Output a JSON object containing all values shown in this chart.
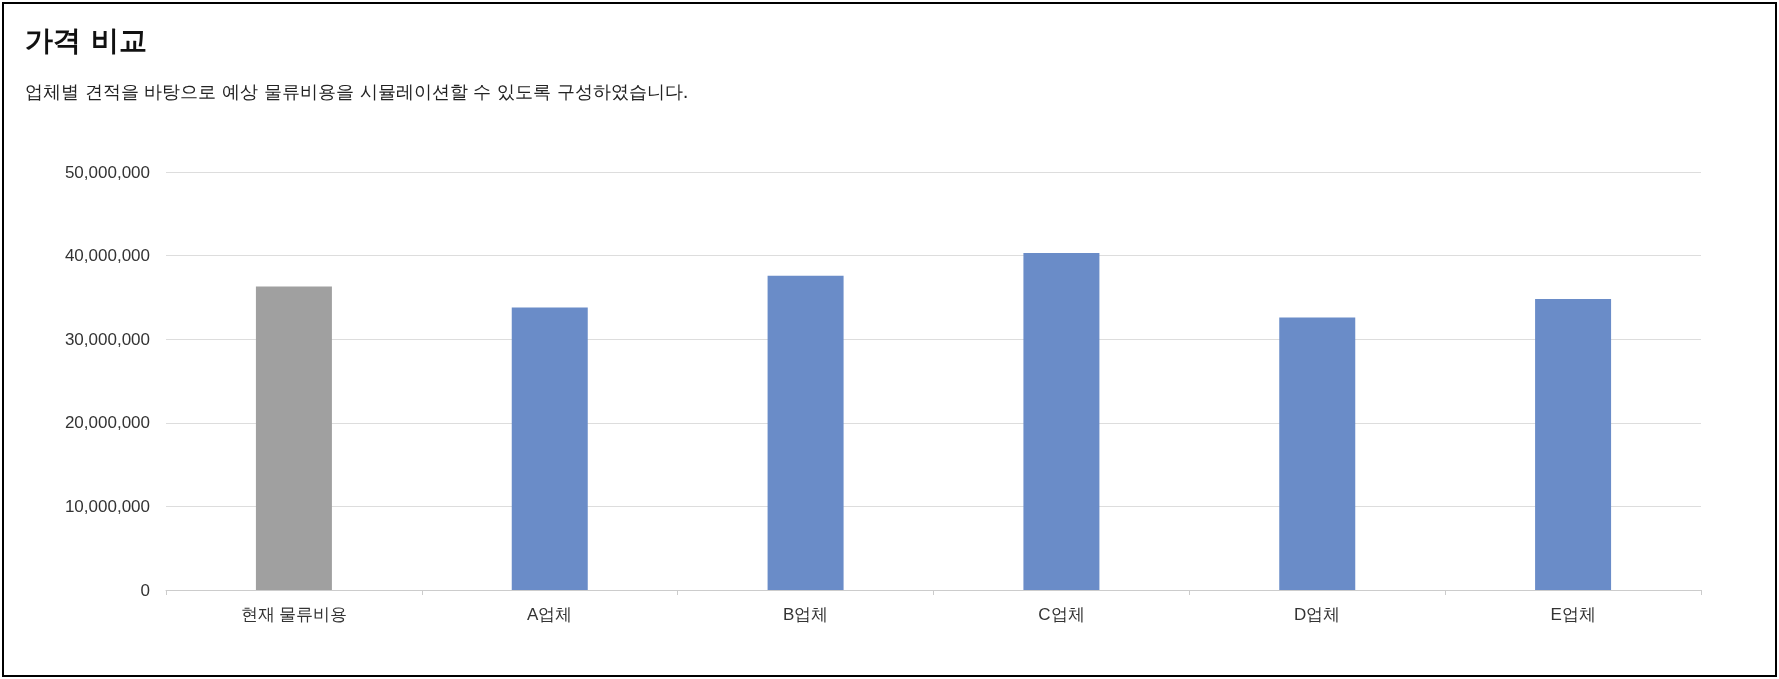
{
  "chart_data": {
    "type": "bar",
    "title": "가격 비교",
    "subtitle": "업체별 견적을 바탕으로 예상 물류비용을 시뮬레이션할 수 있도록 구성하였습니다.",
    "categories": [
      "현재 물류비용",
      "A업체",
      "B업체",
      "C업체",
      "D업체",
      "E업체"
    ],
    "values": [
      36300000,
      33800000,
      37600000,
      40300000,
      32600000,
      34800000
    ],
    "colors": [
      "#a0a0a0",
      "#6a8cc8",
      "#6a8cc8",
      "#6a8cc8",
      "#6a8cc8",
      "#6a8cc8"
    ],
    "ylim": [
      0,
      50000000
    ],
    "yticks": [
      0,
      {
        "value": 10000000,
        "label": "10,000,000"
      },
      {
        "value": 20000000,
        "label": "20,000,000"
      },
      {
        "value": 30000000,
        "label": "30,000,000"
      },
      {
        "value": 40000000,
        "label": "40,000,000"
      },
      {
        "value": 50000000,
        "label": "50,000,000"
      }
    ],
    "grid": "y"
  }
}
